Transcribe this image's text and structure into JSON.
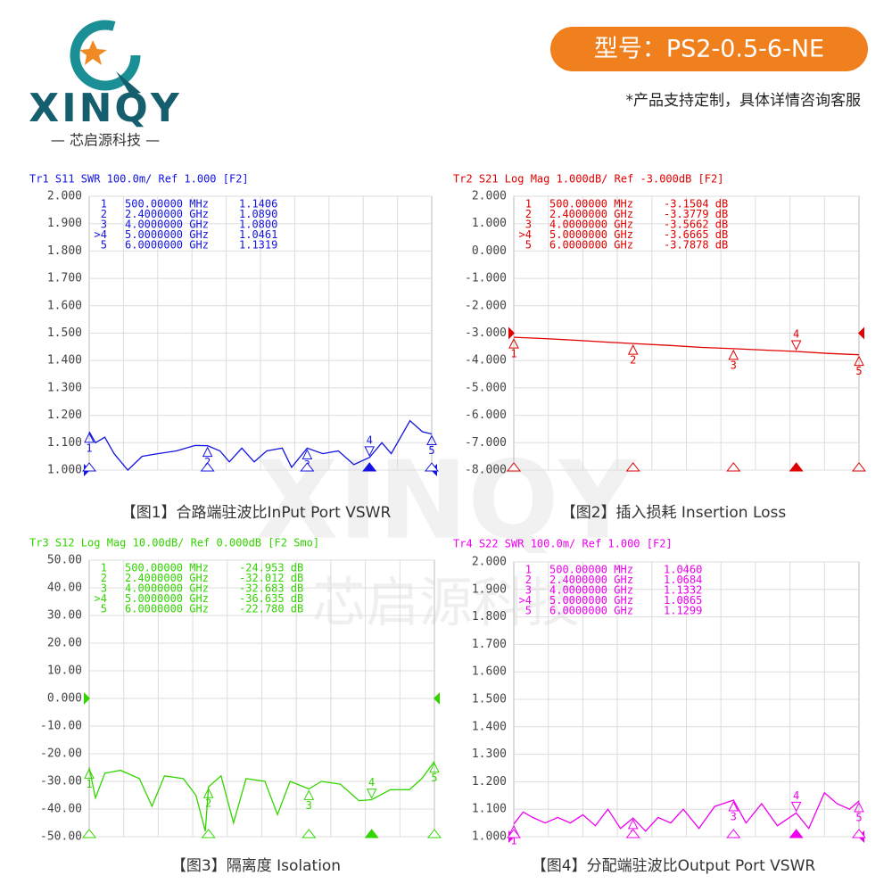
{
  "header": {
    "brand": "XINQY",
    "company": "— 芯启源科技 —",
    "model": "型号：PS2-0.5-6-NE",
    "note": "*产品支持定制，具体详情咨询客服"
  },
  "watermark": {
    "brand": "XINQY",
    "name": "芯启源科技"
  },
  "chart_data": [
    {
      "type": "line",
      "title": "Tr1 S11 SWR 100.0m/ Ref 1.000 [F2]",
      "caption": "【图1】合路端驻波比InPut Port VSWR",
      "color": "#1414e0",
      "grid": true,
      "ref": 1.0,
      "xlim": [
        0.5,
        6
      ],
      "ylim": [
        1.0,
        2.0
      ],
      "yticks": [
        {
          "value": 2.0,
          "label": "2.000"
        },
        {
          "value": 1.9,
          "label": "1.900"
        },
        {
          "value": 1.8,
          "label": "1.800"
        },
        {
          "value": 1.7,
          "label": "1.700"
        },
        {
          "value": 1.6,
          "label": "1.600"
        },
        {
          "value": 1.5,
          "label": "1.500"
        },
        {
          "value": 1.4,
          "label": "1.400"
        },
        {
          "value": 1.3,
          "label": "1.300"
        },
        {
          "value": 1.2,
          "label": "1.200"
        },
        {
          "value": 1.1,
          "label": "1.100"
        },
        {
          "value": 1.0,
          "label": "1.000"
        }
      ],
      "x": [
        0.5,
        0.6,
        0.75,
        0.9,
        1.12,
        1.35,
        1.6,
        1.9,
        2.2,
        2.4,
        2.6,
        2.75,
        2.95,
        3.15,
        3.35,
        3.6,
        3.75,
        4.0,
        4.25,
        4.5,
        4.75,
        5.0,
        5.2,
        5.35,
        5.65,
        5.85,
        6.0
      ],
      "values": [
        1.14,
        1.1,
        1.12,
        1.06,
        1.0,
        1.05,
        1.06,
        1.07,
        1.09,
        1.089,
        1.07,
        1.03,
        1.08,
        1.03,
        1.07,
        1.08,
        1.01,
        1.08,
        1.06,
        1.07,
        1.02,
        1.046,
        1.1,
        1.06,
        1.18,
        1.14,
        1.132
      ],
      "markers": [
        {
          "name": "1",
          "id": "1",
          "freq": "500.00000 MHz",
          "x": 0.5,
          "value": 1.1406,
          "label": "1.1406"
        },
        {
          "name": "2",
          "id": "2",
          "freq": "2.4000000 GHz",
          "x": 2.4,
          "value": 1.089,
          "label": "1.0890"
        },
        {
          "name": "3",
          "id": "3",
          "freq": "4.0000000 GHz",
          "x": 4.0,
          "value": 1.08,
          "label": "1.0800"
        },
        {
          "name": ">4",
          "id": "4",
          "freq": "5.0000000 GHz",
          "x": 5.0,
          "value": 1.0461,
          "label": "1.0461"
        },
        {
          "name": "5",
          "id": "5",
          "freq": "6.0000000 GHz",
          "x": 6.0,
          "value": 1.1319,
          "label": "1.1319"
        }
      ]
    },
    {
      "type": "line",
      "title": "Tr2 S21 Log Mag 1.000dB/ Ref -3.000dB [F2]",
      "caption": "【图2】插入损耗 Insertion Loss",
      "color": "#e00000",
      "grid": true,
      "ref": -3,
      "xlim": [
        0.5,
        6
      ],
      "ylim": [
        -8,
        2
      ],
      "yticks": [
        {
          "value": 2,
          "label": "2.000"
        },
        {
          "value": 1,
          "label": "1.000"
        },
        {
          "value": 0,
          "label": "0.000"
        },
        {
          "value": -1,
          "label": "-1.000"
        },
        {
          "value": -2,
          "label": "-2.000"
        },
        {
          "value": -3,
          "label": "-3.000"
        },
        {
          "value": -4,
          "label": "-4.000"
        },
        {
          "value": -5,
          "label": "-5.000"
        },
        {
          "value": -6,
          "label": "-6.000"
        },
        {
          "value": -7,
          "label": "-7.000"
        },
        {
          "value": -8,
          "label": "-8.000"
        }
      ],
      "x": [
        0.5,
        1.0,
        1.5,
        2.0,
        2.4,
        3.0,
        3.5,
        4.0,
        4.5,
        5.0,
        5.5,
        6.0
      ],
      "values": [
        -3.15,
        -3.2,
        -3.26,
        -3.33,
        -3.378,
        -3.45,
        -3.52,
        -3.566,
        -3.62,
        -3.667,
        -3.74,
        -3.788
      ],
      "markers": [
        {
          "name": "1",
          "id": "1",
          "freq": "500.00000 MHz",
          "x": 0.5,
          "value": -3.1504,
          "label": "-3.1504 dB"
        },
        {
          "name": "2",
          "id": "2",
          "freq": "2.4000000 GHz",
          "x": 2.4,
          "value": -3.3779,
          "label": "-3.3779 dB"
        },
        {
          "name": "3",
          "id": "3",
          "freq": "4.0000000 GHz",
          "x": 4.0,
          "value": -3.5662,
          "label": "-3.5662 dB"
        },
        {
          "name": ">4",
          "id": "4",
          "freq": "5.0000000 GHz",
          "x": 5.0,
          "value": -3.6665,
          "label": "-3.6665 dB"
        },
        {
          "name": "5",
          "id": "5",
          "freq": "6.0000000 GHz",
          "x": 6.0,
          "value": -3.7878,
          "label": "-3.7878 dB"
        }
      ]
    },
    {
      "type": "line",
      "title": "Tr3 S12 Log Mag 10.00dB/ Ref 0.000dB [F2 Smo]",
      "caption": "【图3】隔离度 Isolation",
      "color": "#33d400",
      "grid": true,
      "ref": 0,
      "xlim": [
        0.5,
        6
      ],
      "ylim": [
        -50,
        50
      ],
      "yticks": [
        {
          "value": 50,
          "label": "50.00"
        },
        {
          "value": 40,
          "label": "40.00"
        },
        {
          "value": 30,
          "label": "30.00"
        },
        {
          "value": 20,
          "label": "20.00"
        },
        {
          "value": 10,
          "label": "10.00"
        },
        {
          "value": 0,
          "label": "0.000"
        },
        {
          "value": -10,
          "label": "-10.00"
        },
        {
          "value": -20,
          "label": "-20.00"
        },
        {
          "value": -30,
          "label": "-30.00"
        },
        {
          "value": -40,
          "label": "-40.00"
        },
        {
          "value": -50,
          "label": "-50.00"
        }
      ],
      "x": [
        0.5,
        0.6,
        0.75,
        1.0,
        1.3,
        1.5,
        1.7,
        2.0,
        2.2,
        2.35,
        2.4,
        2.6,
        2.8,
        3.0,
        3.3,
        3.5,
        3.7,
        4.0,
        4.2,
        4.5,
        4.8,
        5.0,
        5.3,
        5.6,
        5.8,
        6.0
      ],
      "values": [
        -24.95,
        -36,
        -27,
        -26,
        -29,
        -39,
        -28,
        -29,
        -35,
        -48,
        -32.0,
        -28,
        -45,
        -29,
        -30,
        -42,
        -30,
        -32.7,
        -30,
        -31,
        -37,
        -36.6,
        -33,
        -33,
        -29,
        -22.78
      ],
      "markers": [
        {
          "name": "1",
          "id": "1",
          "freq": "500.00000 MHz",
          "x": 0.5,
          "value": -24.953,
          "label": "-24.953 dB"
        },
        {
          "name": "2",
          "id": "2",
          "freq": "2.4000000 GHz",
          "x": 2.4,
          "value": -32.012,
          "label": "-32.012 dB"
        },
        {
          "name": "3",
          "id": "3",
          "freq": "4.0000000 GHz",
          "x": 4.0,
          "value": -32.683,
          "label": "-32.683 dB"
        },
        {
          "name": ">4",
          "id": "4",
          "freq": "5.0000000 GHz",
          "x": 5.0,
          "value": -36.635,
          "label": "-36.635 dB"
        },
        {
          "name": "5",
          "id": "5",
          "freq": "6.0000000 GHz",
          "x": 6.0,
          "value": -22.78,
          "label": "-22.780 dB"
        }
      ]
    },
    {
      "type": "line",
      "title": "Tr4 S22 SWR 100.0m/ Ref 1.000 [F2]",
      "caption": "【图4】分配端驻波比Output Port VSWR",
      "color": "#ee00ee",
      "grid": true,
      "ref": 1.0,
      "xlim": [
        0.5,
        6
      ],
      "ylim": [
        1.0,
        2.0
      ],
      "yticks": [
        {
          "value": 2.0,
          "label": "2.000"
        },
        {
          "value": 1.9,
          "label": "1.900"
        },
        {
          "value": 1.8,
          "label": "1.800"
        },
        {
          "value": 1.7,
          "label": "1.700"
        },
        {
          "value": 1.6,
          "label": "1.600"
        },
        {
          "value": 1.5,
          "label": "1.500"
        },
        {
          "value": 1.4,
          "label": "1.400"
        },
        {
          "value": 1.3,
          "label": "1.300"
        },
        {
          "value": 1.2,
          "label": "1.200"
        },
        {
          "value": 1.1,
          "label": "1.100"
        },
        {
          "value": 1.0,
          "label": "1.000"
        }
      ],
      "x": [
        0.5,
        0.65,
        0.8,
        1.0,
        1.2,
        1.4,
        1.6,
        1.8,
        2.0,
        2.2,
        2.4,
        2.6,
        2.8,
        3.0,
        3.2,
        3.45,
        3.7,
        4.0,
        4.2,
        4.45,
        4.7,
        5.0,
        5.2,
        5.45,
        5.65,
        5.85,
        6.0
      ],
      "values": [
        1.046,
        1.09,
        1.07,
        1.05,
        1.07,
        1.05,
        1.08,
        1.04,
        1.1,
        1.03,
        1.068,
        1.02,
        1.07,
        1.05,
        1.1,
        1.03,
        1.11,
        1.133,
        1.05,
        1.12,
        1.04,
        1.0865,
        1.03,
        1.16,
        1.12,
        1.1,
        1.13
      ],
      "markers": [
        {
          "name": "1",
          "id": "1",
          "freq": "500.00000 MHz",
          "x": 0.5,
          "value": 1.046,
          "label": "1.0460"
        },
        {
          "name": "2",
          "id": "2",
          "freq": "2.4000000 GHz",
          "x": 2.4,
          "value": 1.0684,
          "label": "1.0684"
        },
        {
          "name": "3",
          "id": "3",
          "freq": "4.0000000 GHz",
          "x": 4.0,
          "value": 1.1332,
          "label": "1.1332"
        },
        {
          "name": ">4",
          "id": "4",
          "freq": "5.0000000 GHz",
          "x": 5.0,
          "value": 1.0865,
          "label": "1.0865"
        },
        {
          "name": "5",
          "id": "5",
          "freq": "6.0000000 GHz",
          "x": 6.0,
          "value": 1.1299,
          "label": "1.1299"
        }
      ]
    }
  ]
}
